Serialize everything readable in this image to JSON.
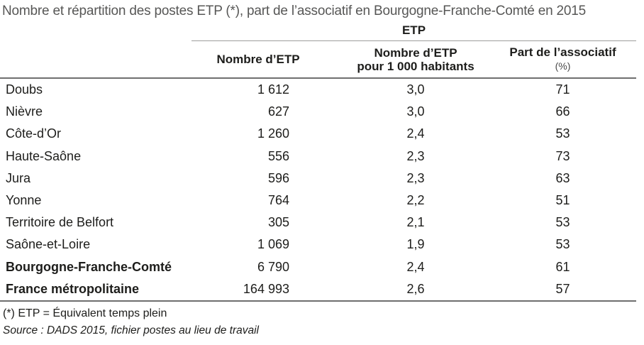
{
  "title": "Nombre et répartition des postes ETP (*), part de l’associatif en Bourgogne-Franche-Comté en 2015",
  "chart_data": {
    "type": "table",
    "group_header": "ETP",
    "col_headers": {
      "col1": "Nombre d’ETP",
      "col2_line1": "Nombre d’ETP",
      "col2_line2": "pour 1 000 habitants",
      "col3": "Part de l’associatif",
      "col3_unit": "(%)"
    },
    "rows": [
      {
        "name": "Doubs",
        "etp": "1 612",
        "etp_per_1000": "3,0",
        "part_associatif": "71"
      },
      {
        "name": "Nièvre",
        "etp": "627",
        "etp_per_1000": "3,0",
        "part_associatif": "66"
      },
      {
        "name": "Côte-d’Or",
        "etp": "1 260",
        "etp_per_1000": "2,4",
        "part_associatif": "53"
      },
      {
        "name": "Haute-Saône",
        "etp": "556",
        "etp_per_1000": "2,3",
        "part_associatif": "73"
      },
      {
        "name": "Jura",
        "etp": "596",
        "etp_per_1000": "2,3",
        "part_associatif": "63"
      },
      {
        "name": "Yonne",
        "etp": "764",
        "etp_per_1000": "2,2",
        "part_associatif": "51"
      },
      {
        "name": "Territoire de Belfort",
        "etp": "305",
        "etp_per_1000": "2,1",
        "part_associatif": "53"
      },
      {
        "name": "Saône-et-Loire",
        "etp": "1 069",
        "etp_per_1000": "1,9",
        "part_associatif": "53"
      },
      {
        "name": "Bourgogne-Franche-Comté",
        "etp": "6 790",
        "etp_per_1000": "2,4",
        "part_associatif": "61"
      },
      {
        "name": "France métropolitaine",
        "etp": "164 993",
        "etp_per_1000": "2,6",
        "part_associatif": "57"
      }
    ]
  },
  "footnote": "(*) ETP = Équivalent temps plein",
  "source": "Source : DADS 2015, fichier postes au lieu de travail",
  "colors": {
    "title_text": "#575756",
    "body_text": "#1d1d1b",
    "rule_heavy": "#6f6f6f",
    "rule_light": "#9d9d9c",
    "background": "#ffffff"
  }
}
